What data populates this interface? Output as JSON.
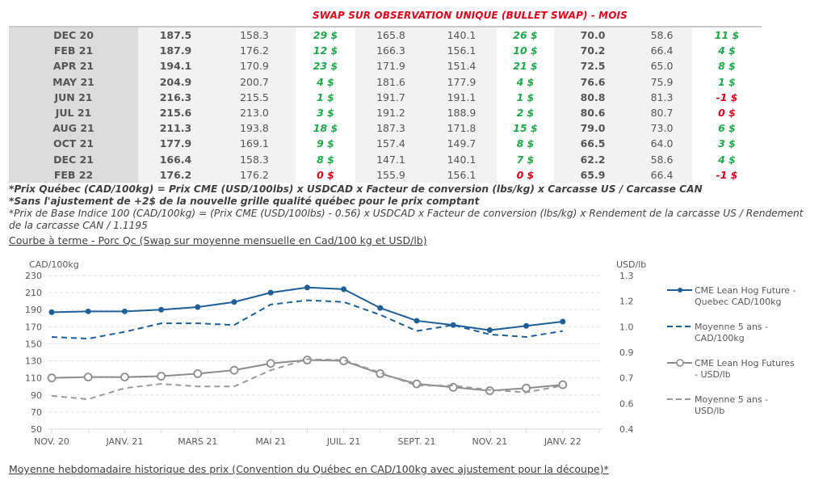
{
  "table": {
    "title": "SWAP SUR OBSERVATION UNIQUE (BULLET SWAP) - MOIS",
    "rows": [
      {
        "month": "DEC 20",
        "a1": "187.5",
        "a2": "158.3",
        "d1": "29 $",
        "d1s": "pos",
        "b1": "165.8",
        "b2": "140.1",
        "d2": "26 $",
        "d2s": "pos",
        "c1": "70.0",
        "c2": "58.6",
        "d3": "11 $",
        "d3s": "pos"
      },
      {
        "month": "FEB 21",
        "a1": "187.9",
        "a2": "176.2",
        "d1": "12 $",
        "d1s": "pos",
        "b1": "166.3",
        "b2": "156.1",
        "d2": "10 $",
        "d2s": "pos",
        "c1": "70.2",
        "c2": "66.4",
        "d3": "4 $",
        "d3s": "pos"
      },
      {
        "month": "APR 21",
        "a1": "194.1",
        "a2": "170.9",
        "d1": "23 $",
        "d1s": "pos",
        "b1": "171.9",
        "b2": "151.4",
        "d2": "21 $",
        "d2s": "pos",
        "c1": "72.5",
        "c2": "65.0",
        "d3": "8 $",
        "d3s": "pos"
      },
      {
        "month": "MAY 21",
        "a1": "204.9",
        "a2": "200.7",
        "d1": "4 $",
        "d1s": "pos",
        "b1": "181.6",
        "b2": "177.9",
        "d2": "4 $",
        "d2s": "pos",
        "c1": "76.6",
        "c2": "75.9",
        "d3": "1 $",
        "d3s": "pos"
      },
      {
        "month": "JUN 21",
        "a1": "216.3",
        "a2": "215.5",
        "d1": "1 $",
        "d1s": "pos",
        "b1": "191.7",
        "b2": "191.1",
        "d2": "1 $",
        "d2s": "pos",
        "c1": "80.8",
        "c2": "81.3",
        "d3": "-1 $",
        "d3s": "neg"
      },
      {
        "month": "JUL 21",
        "a1": "215.6",
        "a2": "213.0",
        "d1": "3 $",
        "d1s": "pos",
        "b1": "191.2",
        "b2": "188.9",
        "d2": "2 $",
        "d2s": "pos",
        "c1": "80.6",
        "c2": "80.7",
        "d3": "0 $",
        "d3s": "neg"
      },
      {
        "month": "AUG 21",
        "a1": "211.3",
        "a2": "193.8",
        "d1": "18 $",
        "d1s": "pos",
        "b1": "187.3",
        "b2": "171.8",
        "d2": "15 $",
        "d2s": "pos",
        "c1": "79.0",
        "c2": "73.0",
        "d3": "6 $",
        "d3s": "pos"
      },
      {
        "month": "OCT 21",
        "a1": "177.9",
        "a2": "169.1",
        "d1": "9 $",
        "d1s": "pos",
        "b1": "157.4",
        "b2": "149.7",
        "d2": "8 $",
        "d2s": "pos",
        "c1": "66.5",
        "c2": "64.0",
        "d3": "3 $",
        "d3s": "pos"
      },
      {
        "month": "DEC 21",
        "a1": "166.4",
        "a2": "158.3",
        "d1": "8 $",
        "d1s": "pos",
        "b1": "147.1",
        "b2": "140.1",
        "d2": "7 $",
        "d2s": "pos",
        "c1": "62.2",
        "c2": "58.6",
        "d3": "4 $",
        "d3s": "pos"
      },
      {
        "month": "FEB 22",
        "a1": "176.2",
        "a2": "176.2",
        "d1": "0 $",
        "d1s": "neg",
        "b1": "155.9",
        "b2": "156.1",
        "d2": "0 $",
        "d2s": "neg",
        "c1": "65.9",
        "c2": "66.4",
        "d3": "-1 $",
        "d3s": "neg"
      }
    ]
  },
  "notes": {
    "n1": "*Prix Québec (CAD/100kg) = Prix CME (USD/100lbs) x USDCAD x Facteur de conversion (lbs/kg) x Carcasse US / Carcasse CAN",
    "n2": "*Sans l'ajustement de +2$ de la nouvelle grille qualité québec pour le prix comptant",
    "n3": "*Prix de Base Indice 100 (CAD/100kg) = (Prix CME (USD/100lbs) - 0.56) x USDCAD x Facteur de conversion (lbs/kg) x Rendement de la carcasse US / Rendement de la carcasse CAN / 1.1195"
  },
  "section1_link": "Courbe à terme - Porc Qc (Swap sur moyenne mensuelle en Cad/100 kg et USD/lb)",
  "section2_link": "Moyenne hebdomadaire historique des prix (Convention du Québec en CAD/100kg avec ajustement pour la découpe)*",
  "chart_data": {
    "type": "line",
    "title": "",
    "ylabel": "CAD/100kg",
    "y2label": "USD/lb",
    "ylim": [
      50,
      230
    ],
    "yticks": [
      "230",
      "210",
      "190",
      "170",
      "150",
      "130",
      "110",
      "90",
      "70",
      "50"
    ],
    "y2lim": [
      0.4,
      1.3
    ],
    "y2ticks": [
      "1.3",
      "1.2",
      "1.0",
      "0.9",
      "0.7",
      "0.6",
      "0.4"
    ],
    "grid": true,
    "legend": "right",
    "x_tick_labels": [
      "NOV. 20",
      "JANV. 21",
      "MARS 21",
      "MAI 21",
      "JUIL. 21",
      "SEPT. 21",
      "NOV. 21",
      "JANV. 22"
    ],
    "x_count": 15,
    "series": [
      {
        "name": "CME Lean Hog Future - Quebec CAD/100kg",
        "axis": "left",
        "style": "solid-dot",
        "color": "#1f5f95",
        "values": [
          187,
          188,
          188,
          190,
          193,
          199,
          210,
          216,
          214,
          192,
          177,
          172,
          166,
          171,
          176
        ]
      },
      {
        "name": "Moyenne 5 ans - CAD/100kg",
        "axis": "left",
        "style": "dashed",
        "color": "#1f5f95",
        "values": [
          158,
          156,
          164,
          174,
          174,
          172,
          196,
          201,
          199,
          184,
          165,
          172,
          161,
          158,
          165
        ]
      },
      {
        "name": "CME Lean Hog Futures - USD/lb",
        "axis": "right",
        "style": "solid-circle",
        "color": "#8c8c8c",
        "values": [
          0.7,
          0.705,
          0.705,
          0.71,
          0.725,
          0.745,
          0.785,
          0.805,
          0.8,
          0.725,
          0.665,
          0.645,
          0.625,
          0.64,
          0.66
        ]
      },
      {
        "name": "Moyenne 5 ans - USD/lb",
        "axis": "right",
        "style": "dashed",
        "color": "#9a9a9a",
        "values": [
          0.595,
          0.575,
          0.64,
          0.665,
          0.65,
          0.65,
          0.745,
          0.81,
          0.805,
          0.73,
          0.655,
          0.655,
          0.63,
          0.615,
          0.655
        ]
      }
    ]
  }
}
